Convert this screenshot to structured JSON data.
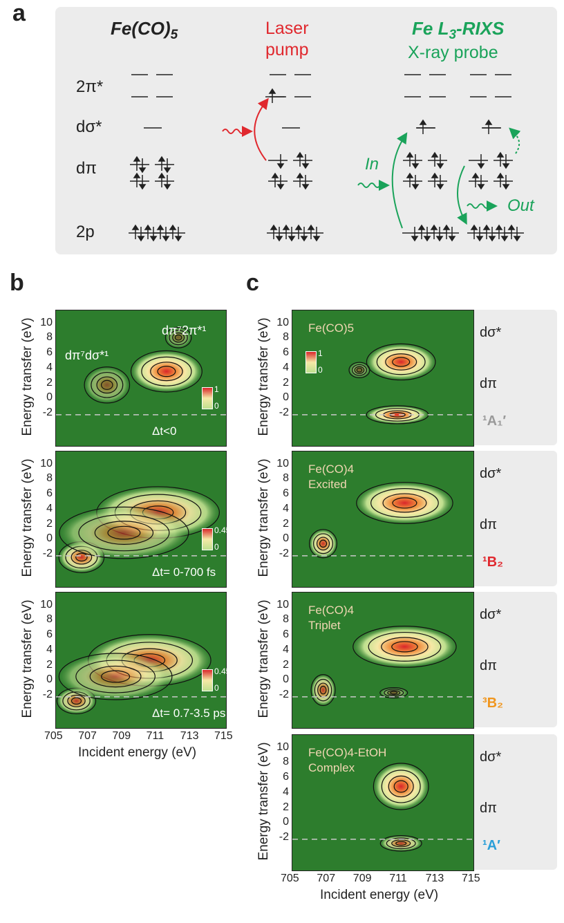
{
  "panels": {
    "a": "a",
    "b": "b",
    "c": "c"
  },
  "diagram_a": {
    "col1_title": "Fe(CO)",
    "col1_title_sub": "5",
    "col2_title_line1": "Laser",
    "col2_title_line2": "pump",
    "col3_title": "Fe L",
    "col3_title_sub": "3",
    "col3_title_tail": "-RIXS",
    "col3_subtitle": "X-ray probe",
    "levels": [
      "2π*",
      "dσ*",
      "dπ",
      "2p"
    ],
    "in_label": "In",
    "out_label": "Out",
    "colors": {
      "pump": "#e0282e",
      "probe": "#1aa35a",
      "box": "#ececec"
    }
  },
  "panel_b": {
    "ylabel": "Energy transfer (eV)",
    "xlabel": "Incident energy (eV)",
    "xticks": [
      "705",
      "707",
      "709",
      "711",
      "713",
      "715"
    ],
    "yticks": [
      "10",
      "8",
      "6",
      "4",
      "2",
      "0",
      "-2"
    ],
    "plots": [
      {
        "time": "Δt<0",
        "cbar_max": "1",
        "cbar_min": "0",
        "ann1": "dπ⁷dσ*¹",
        "ann2": "dπ⁷2π*¹"
      },
      {
        "time": "Δt= 0-700 fs",
        "cbar_max": "0.45",
        "cbar_min": "0"
      },
      {
        "time": "Δt= 0.7-3.5 ps",
        "cbar_max": "0.45",
        "cbar_min": "0"
      }
    ]
  },
  "panel_c": {
    "ylabel": "Energy transfer (eV)",
    "xlabel": "Incident energy (eV)",
    "xticks": [
      "705",
      "707",
      "709",
      "711",
      "713",
      "715"
    ],
    "yticks": [
      "10",
      "8",
      "6",
      "4",
      "2",
      "0",
      "-2"
    ],
    "plots": [
      {
        "name_line1": "Fe(CO)5",
        "name_line2": "",
        "cbar_max": "1",
        "cbar_min": "0",
        "state": "¹A₁′",
        "state_color": "#9a9a9a"
      },
      {
        "name_line1": "Fe(CO)4",
        "name_line2": "Excited",
        "state": "¹B₂",
        "state_color": "#e0282e"
      },
      {
        "name_line1": "Fe(CO)4",
        "name_line2": "Triplet",
        "state": "³B₂",
        "state_color": "#f0961e"
      },
      {
        "name_line1": "Fe(CO)4-EtOH",
        "name_line2": "Complex",
        "state": "¹A′",
        "state_color": "#2a9fd8"
      }
    ],
    "side_levels": {
      "dsigma": "dσ*",
      "dpi": "dπ"
    }
  }
}
